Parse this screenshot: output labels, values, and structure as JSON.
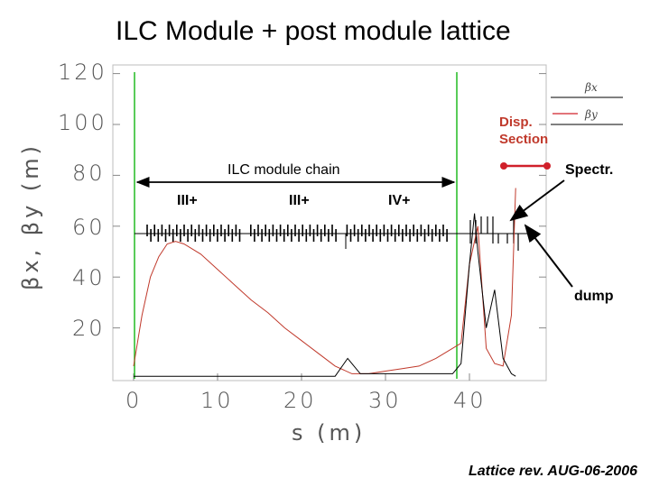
{
  "chart_data": {
    "type": "line",
    "title": "ILC Module + post module lattice",
    "xlabel": "s (m)",
    "ylabel": "βx, βy (m)",
    "xlim": [
      0,
      50
    ],
    "ylim": [
      0,
      120
    ],
    "x_ticks": [
      "0",
      "10",
      "20",
      "30",
      "40"
    ],
    "y_ticks": [
      "120",
      "100",
      "80",
      "60",
      "40",
      "20"
    ],
    "grid": false,
    "legend": [
      "βx",
      "βy"
    ],
    "legend_placement": "top-right",
    "series": [
      {
        "name": "βx",
        "color": "#c0392b",
        "x": [
          0,
          1,
          2,
          3,
          4,
          5,
          6,
          8,
          10,
          12,
          14,
          16,
          18,
          20,
          22,
          24,
          26,
          28,
          30,
          32,
          34,
          36,
          38,
          39,
          40,
          41,
          42,
          43,
          44,
          45,
          45.5
        ],
        "y": [
          5,
          25,
          40,
          48,
          53,
          54,
          53,
          49,
          43,
          37,
          31,
          26,
          20,
          15,
          10,
          5,
          2,
          2,
          3,
          4,
          5,
          8,
          12,
          14,
          45,
          60,
          12,
          6,
          5,
          25,
          75
        ]
      },
      {
        "name": "βy",
        "color": "#000000",
        "x": [
          0,
          24,
          25.5,
          27,
          38,
          39,
          40,
          40.6,
          41,
          42,
          43,
          44,
          45,
          45.5
        ],
        "y": [
          1,
          1,
          8,
          2,
          2,
          6,
          45,
          65,
          50,
          20,
          35,
          8,
          2,
          1
        ]
      }
    ],
    "annotations": {
      "module_chain": "ILC module chain",
      "cryostat_labels": [
        "III+",
        "III+",
        "IV+"
      ],
      "disp_section": "Disp. Section",
      "spectrometer": "Spectr.",
      "dump": "dump"
    }
  },
  "footer": "Lattice rev. AUG-06-2006",
  "colors": {
    "module_boundary": "#22bb22",
    "red": "#d0202a",
    "arrow": "#000000"
  }
}
